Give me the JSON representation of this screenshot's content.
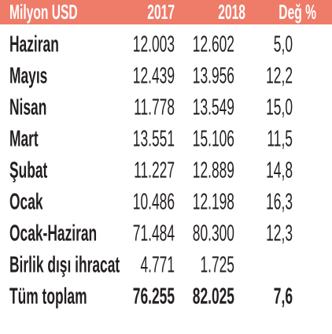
{
  "table": {
    "header": [
      "Milyon USD",
      "2017",
      "2018",
      "Değ %"
    ],
    "rows": [
      [
        "Haziran",
        "12.003",
        "12.602",
        "5,0"
      ],
      [
        "Mayıs",
        "12.439",
        "13.956",
        "12,2"
      ],
      [
        "Nisan",
        "11.778",
        "13.549",
        "15,0"
      ],
      [
        "Mart",
        "13.551",
        "15.106",
        "11,5"
      ],
      [
        "Şubat",
        "11.227",
        "12.889",
        "14,8"
      ],
      [
        "Ocak",
        "10.486",
        "12.198",
        "16,3"
      ],
      [
        "Ocak-Haziran",
        "71.484",
        "80.300",
        "12,3"
      ],
      [
        "Birlik dışı ihracat",
        "4.771",
        "1.725"
      ],
      [
        "Tüm toplam",
        "76.255",
        "82.025",
        "7,6"
      ]
    ]
  }
}
